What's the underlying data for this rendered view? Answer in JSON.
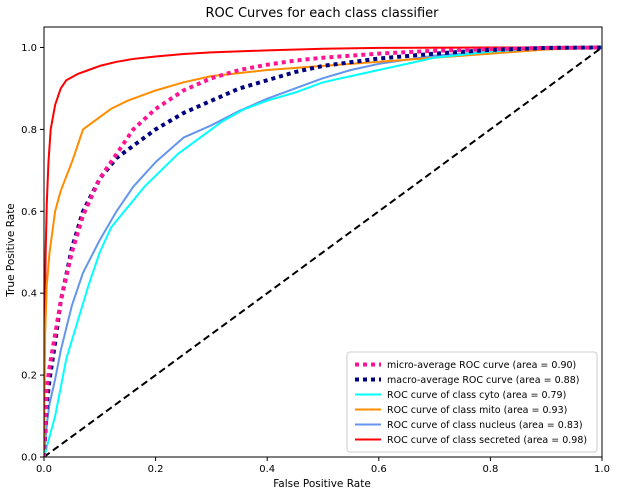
{
  "chart_data": {
    "type": "line",
    "title": "ROC Curves for each class classifier",
    "xlabel": "False Positive Rate",
    "ylabel": "True Positive Rate",
    "xlim": [
      0.0,
      1.0
    ],
    "ylim": [
      0.0,
      1.05
    ],
    "x_ticks": [
      "0.0",
      "0.2",
      "0.4",
      "0.6",
      "0.8",
      "1.0"
    ],
    "y_ticks": [
      "0.0",
      "0.2",
      "0.4",
      "0.6",
      "0.8",
      "1.0"
    ],
    "grid": false,
    "legend_position": "lower-right",
    "series": [
      {
        "name": "micro-average ROC curve (area = 0.90)",
        "color": "#ff1493",
        "style": "dotted",
        "x": [
          0.0,
          0.005,
          0.01,
          0.02,
          0.03,
          0.05,
          0.07,
          0.1,
          0.13,
          0.16,
          0.2,
          0.25,
          0.3,
          0.35,
          0.4,
          0.45,
          0.5,
          0.6,
          0.7,
          0.8,
          0.9,
          1.0
        ],
        "y": [
          0.0,
          0.17,
          0.22,
          0.3,
          0.38,
          0.5,
          0.59,
          0.68,
          0.74,
          0.8,
          0.85,
          0.895,
          0.925,
          0.945,
          0.958,
          0.968,
          0.975,
          0.985,
          0.992,
          0.996,
          0.999,
          1.0
        ]
      },
      {
        "name": "macro-average ROC curve (area = 0.88)",
        "color": "#000080",
        "style": "dotted",
        "x": [
          0.0,
          0.005,
          0.01,
          0.02,
          0.03,
          0.05,
          0.07,
          0.1,
          0.13,
          0.16,
          0.2,
          0.25,
          0.3,
          0.35,
          0.4,
          0.45,
          0.5,
          0.6,
          0.7,
          0.8,
          0.9,
          1.0
        ],
        "y": [
          0.0,
          0.13,
          0.19,
          0.28,
          0.38,
          0.51,
          0.6,
          0.68,
          0.73,
          0.76,
          0.8,
          0.84,
          0.87,
          0.9,
          0.92,
          0.94,
          0.955,
          0.973,
          0.985,
          0.994,
          0.999,
          1.0
        ]
      },
      {
        "name": "ROC curve of class cyto (area = 0.79)",
        "color": "#00ffff",
        "style": "solid",
        "x": [
          0.0,
          0.01,
          0.02,
          0.03,
          0.04,
          0.06,
          0.08,
          0.1,
          0.12,
          0.15,
          0.18,
          0.21,
          0.24,
          0.28,
          0.32,
          0.36,
          0.4,
          0.45,
          0.5,
          0.55,
          0.6,
          0.65,
          0.7,
          0.8,
          0.9,
          1.0
        ],
        "y": [
          0.0,
          0.05,
          0.1,
          0.17,
          0.24,
          0.33,
          0.42,
          0.5,
          0.56,
          0.61,
          0.66,
          0.7,
          0.74,
          0.78,
          0.82,
          0.85,
          0.87,
          0.89,
          0.915,
          0.93,
          0.945,
          0.96,
          0.975,
          0.99,
          0.998,
          1.0
        ]
      },
      {
        "name": "ROC curve of class mito (area = 0.93)",
        "color": "#ff8c00",
        "style": "solid",
        "x": [
          0.0,
          0.002,
          0.005,
          0.01,
          0.015,
          0.02,
          0.03,
          0.05,
          0.07,
          0.09,
          0.12,
          0.15,
          0.2,
          0.25,
          0.3,
          0.4,
          0.5,
          0.6,
          0.7,
          0.8,
          0.9,
          1.0
        ],
        "y": [
          0.0,
          0.3,
          0.42,
          0.5,
          0.55,
          0.6,
          0.65,
          0.72,
          0.8,
          0.82,
          0.85,
          0.87,
          0.895,
          0.915,
          0.93,
          0.945,
          0.955,
          0.965,
          0.975,
          0.985,
          0.995,
          1.0
        ]
      },
      {
        "name": "ROC curve of class nucleus (area = 0.83)",
        "color": "#6495ed",
        "style": "solid",
        "x": [
          0.0,
          0.005,
          0.01,
          0.02,
          0.03,
          0.05,
          0.07,
          0.1,
          0.13,
          0.16,
          0.2,
          0.25,
          0.3,
          0.35,
          0.4,
          0.45,
          0.5,
          0.55,
          0.6,
          0.7,
          0.8,
          0.9,
          1.0
        ],
        "y": [
          0.0,
          0.08,
          0.13,
          0.19,
          0.26,
          0.37,
          0.45,
          0.53,
          0.6,
          0.66,
          0.72,
          0.78,
          0.81,
          0.845,
          0.875,
          0.9,
          0.925,
          0.945,
          0.96,
          0.98,
          0.99,
          0.997,
          1.0
        ]
      },
      {
        "name": "ROC curve of class secreted (area = 0.98)",
        "color": "#ff0000",
        "style": "solid",
        "x": [
          0.0,
          0.001,
          0.003,
          0.005,
          0.008,
          0.012,
          0.02,
          0.03,
          0.04,
          0.06,
          0.08,
          0.1,
          0.13,
          0.16,
          0.2,
          0.25,
          0.3,
          0.4,
          0.5,
          0.6,
          0.8,
          1.0
        ],
        "y": [
          0.0,
          0.25,
          0.5,
          0.62,
          0.72,
          0.8,
          0.86,
          0.9,
          0.92,
          0.935,
          0.945,
          0.955,
          0.965,
          0.972,
          0.978,
          0.984,
          0.988,
          0.993,
          0.997,
          0.999,
          1.0,
          1.0
        ]
      },
      {
        "name": "",
        "color": "#000000",
        "style": "dashed",
        "x": [
          0.0,
          1.0
        ],
        "y": [
          0.0,
          1.0
        ]
      }
    ]
  }
}
